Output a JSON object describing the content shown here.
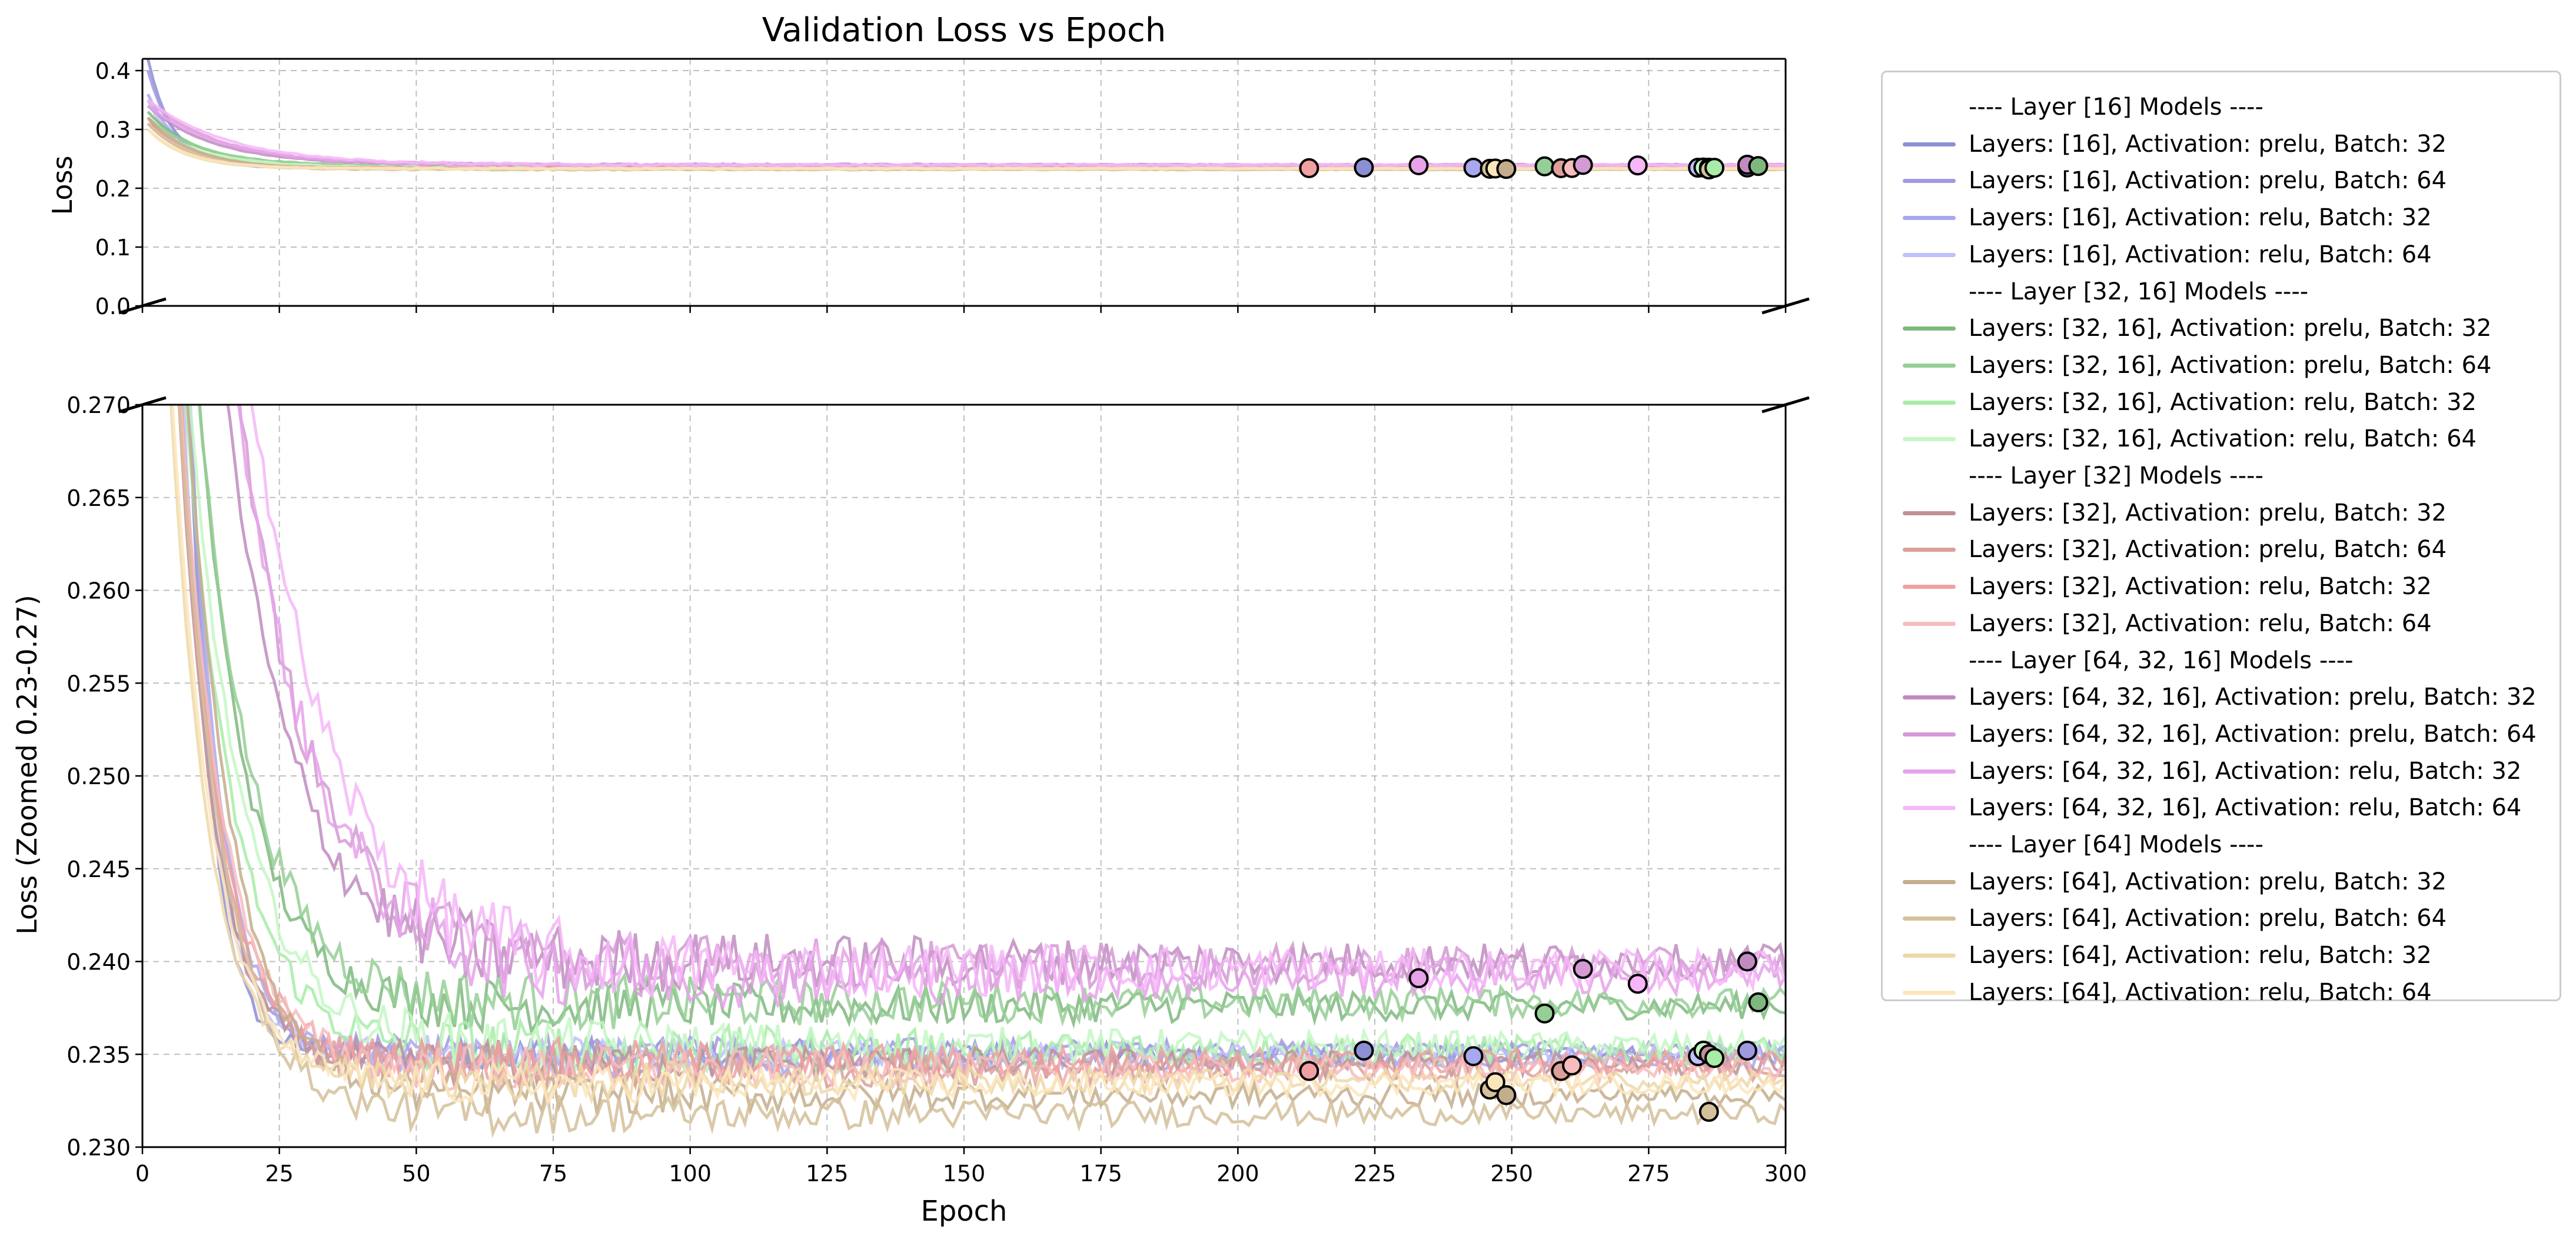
{
  "chart_data": {
    "type": "line",
    "title": "Validation Loss vs Epoch",
    "xlabel": "Epoch",
    "xlim": [
      0,
      300
    ],
    "x_ticks": [
      "0",
      "25",
      "50",
      "75",
      "100",
      "125",
      "150",
      "175",
      "200",
      "225",
      "250",
      "275",
      "300"
    ],
    "grid": true,
    "legend_position": "outside-right",
    "panels": [
      {
        "name": "top",
        "ylabel": "Loss",
        "ylim": [
          0.0,
          0.42
        ],
        "y_ticks": [
          "0.0",
          "0.1",
          "0.2",
          "0.3",
          "0.4"
        ]
      },
      {
        "name": "bottom",
        "ylabel": "Loss (Zoomed 0.23-0.27)",
        "ylim": [
          0.23,
          0.27
        ],
        "y_ticks": [
          "0.230",
          "0.235",
          "0.240",
          "0.245",
          "0.250",
          "0.255",
          "0.260",
          "0.265",
          "0.270"
        ]
      }
    ],
    "legend": [
      {
        "type": "header",
        "label": "---- Layer [16] Models ----"
      },
      {
        "type": "series",
        "label": "Layers: [16], Activation: prelu, Batch: 32",
        "color": "#8d8fd4"
      },
      {
        "type": "series",
        "label": "Layers: [16], Activation: prelu, Batch: 64",
        "color": "#9f9ae0"
      },
      {
        "type": "series",
        "label": "Layers: [16], Activation: relu, Batch: 32",
        "color": "#a8a8f0"
      },
      {
        "type": "series",
        "label": "Layers: [16], Activation: relu, Batch: 64",
        "color": "#c0c0fa"
      },
      {
        "type": "header",
        "label": "---- Layer [32, 16] Models ----"
      },
      {
        "type": "series",
        "label": "Layers: [32, 16], Activation: prelu, Batch: 32",
        "color": "#7fb87f"
      },
      {
        "type": "series",
        "label": "Layers: [32, 16], Activation: prelu, Batch: 64",
        "color": "#95cf95"
      },
      {
        "type": "series",
        "label": "Layers: [32, 16], Activation: relu, Batch: 32",
        "color": "#a8eca8"
      },
      {
        "type": "series",
        "label": "Layers: [32, 16], Activation: relu, Batch: 64",
        "color": "#c4f7c4"
      },
      {
        "type": "header",
        "label": "---- Layer [32] Models ----"
      },
      {
        "type": "series",
        "label": "Layers: [32], Activation: prelu, Batch: 32",
        "color": "#c09098"
      },
      {
        "type": "series",
        "label": "Layers: [32], Activation: prelu, Batch: 64",
        "color": "#dba09a"
      },
      {
        "type": "series",
        "label": "Layers: [32], Activation: relu, Batch: 32",
        "color": "#f0a0a0"
      },
      {
        "type": "series",
        "label": "Layers: [32], Activation: relu, Batch: 64",
        "color": "#f7bcbc"
      },
      {
        "type": "header",
        "label": "---- Layer [64, 32, 16] Models ----"
      },
      {
        "type": "series",
        "label": "Layers: [64, 32, 16], Activation: prelu, Batch: 32",
        "color": "#c08cc0"
      },
      {
        "type": "series",
        "label": "Layers: [64, 32, 16], Activation: prelu, Batch: 64",
        "color": "#d49ad4"
      },
      {
        "type": "series",
        "label": "Layers: [64, 32, 16], Activation: relu, Batch: 32",
        "color": "#e6a2ea"
      },
      {
        "type": "series",
        "label": "Layers: [64, 32, 16], Activation: relu, Batch: 64",
        "color": "#f6b6f8"
      },
      {
        "type": "header",
        "label": "---- Layer [64] Models ----"
      },
      {
        "type": "series",
        "label": "Layers: [64], Activation: prelu, Batch: 32",
        "color": "#c4ad8c"
      },
      {
        "type": "series",
        "label": "Layers: [64], Activation: prelu, Batch: 64",
        "color": "#d4c09a"
      },
      {
        "type": "series",
        "label": "Layers: [64], Activation: relu, Batch: 32",
        "color": "#eed8a8"
      },
      {
        "type": "series",
        "label": "Layers: [64], Activation: relu, Batch: 64",
        "color": "#fbe6bc"
      }
    ],
    "series_curves": [
      {
        "color": "#8d8fd4",
        "start": 0.42,
        "final": 0.235,
        "decay": 4.5,
        "noise": 0.0006
      },
      {
        "color": "#9f9ae0",
        "start": 0.4,
        "final": 0.2352,
        "decay": 5.0,
        "noise": 0.0006
      },
      {
        "color": "#a8a8f0",
        "start": 0.36,
        "final": 0.2348,
        "decay": 6.0,
        "noise": 0.0007
      },
      {
        "color": "#c0c0fa",
        "start": 0.35,
        "final": 0.235,
        "decay": 5.5,
        "noise": 0.0007
      },
      {
        "color": "#7fb87f",
        "start": 0.33,
        "final": 0.2376,
        "decay": 9.0,
        "noise": 0.0009
      },
      {
        "color": "#95cf95",
        "start": 0.32,
        "final": 0.2378,
        "decay": 10.0,
        "noise": 0.001
      },
      {
        "color": "#a8eca8",
        "start": 0.31,
        "final": 0.2352,
        "decay": 9.0,
        "noise": 0.001
      },
      {
        "color": "#c4f7c4",
        "start": 0.31,
        "final": 0.2354,
        "decay": 10.0,
        "noise": 0.001
      },
      {
        "color": "#c09098",
        "start": 0.32,
        "final": 0.2345,
        "decay": 6.5,
        "noise": 0.0008
      },
      {
        "color": "#dba09a",
        "start": 0.32,
        "final": 0.2342,
        "decay": 7.0,
        "noise": 0.0008
      },
      {
        "color": "#f0a0a0",
        "start": 0.31,
        "final": 0.2346,
        "decay": 7.5,
        "noise": 0.0008
      },
      {
        "color": "#f7bcbc",
        "start": 0.31,
        "final": 0.2342,
        "decay": 8.0,
        "noise": 0.0008
      },
      {
        "color": "#c08cc0",
        "start": 0.34,
        "final": 0.24,
        "decay": 12.0,
        "noise": 0.0012
      },
      {
        "color": "#d49ad4",
        "start": 0.35,
        "final": 0.2398,
        "decay": 13.0,
        "noise": 0.0012
      },
      {
        "color": "#e6a2ea",
        "start": 0.34,
        "final": 0.2392,
        "decay": 14.0,
        "noise": 0.0013
      },
      {
        "color": "#f6b6f8",
        "start": 0.35,
        "final": 0.2396,
        "decay": 15.0,
        "noise": 0.0013
      },
      {
        "color": "#c4ad8c",
        "start": 0.32,
        "final": 0.2328,
        "decay": 8.5,
        "noise": 0.0007
      },
      {
        "color": "#d4c09a",
        "start": 0.31,
        "final": 0.2318,
        "decay": 8.0,
        "noise": 0.0007
      },
      {
        "color": "#eed8a8",
        "start": 0.3,
        "final": 0.2336,
        "decay": 7.0,
        "noise": 0.0007
      },
      {
        "color": "#fbe6bc",
        "start": 0.3,
        "final": 0.2334,
        "decay": 7.5,
        "noise": 0.0007
      }
    ],
    "best_points": [
      {
        "x": 213,
        "y": 0.2341,
        "color": "#f0a0a0"
      },
      {
        "x": 223,
        "y": 0.2352,
        "color": "#8d8fd4"
      },
      {
        "x": 233,
        "y": 0.2391,
        "color": "#e6a2ea"
      },
      {
        "x": 243,
        "y": 0.2349,
        "color": "#a8a8f0"
      },
      {
        "x": 246,
        "y": 0.2331,
        "color": "#d4c09a"
      },
      {
        "x": 247,
        "y": 0.2335,
        "color": "#fbe6bc"
      },
      {
        "x": 249,
        "y": 0.2328,
        "color": "#c4ad8c"
      },
      {
        "x": 256,
        "y": 0.2372,
        "color": "#95cf95"
      },
      {
        "x": 259,
        "y": 0.2341,
        "color": "#dba09a"
      },
      {
        "x": 261,
        "y": 0.2344,
        "color": "#f7bcbc"
      },
      {
        "x": 263,
        "y": 0.2396,
        "color": "#d49ad4"
      },
      {
        "x": 273,
        "y": 0.2388,
        "color": "#f6b6f8"
      },
      {
        "x": 284,
        "y": 0.2349,
        "color": "#c0c0fa"
      },
      {
        "x": 285,
        "y": 0.2352,
        "color": "#c4f7c4"
      },
      {
        "x": 286,
        "y": 0.235,
        "color": "#c09098"
      },
      {
        "x": 286,
        "y": 0.2319,
        "color": "#d4c09a"
      },
      {
        "x": 287,
        "y": 0.2348,
        "color": "#a8eca8"
      },
      {
        "x": 293,
        "y": 0.2352,
        "color": "#9f9ae0"
      },
      {
        "x": 293,
        "y": 0.24,
        "color": "#c08cc0"
      },
      {
        "x": 295,
        "y": 0.2378,
        "color": "#7fb87f"
      }
    ]
  }
}
